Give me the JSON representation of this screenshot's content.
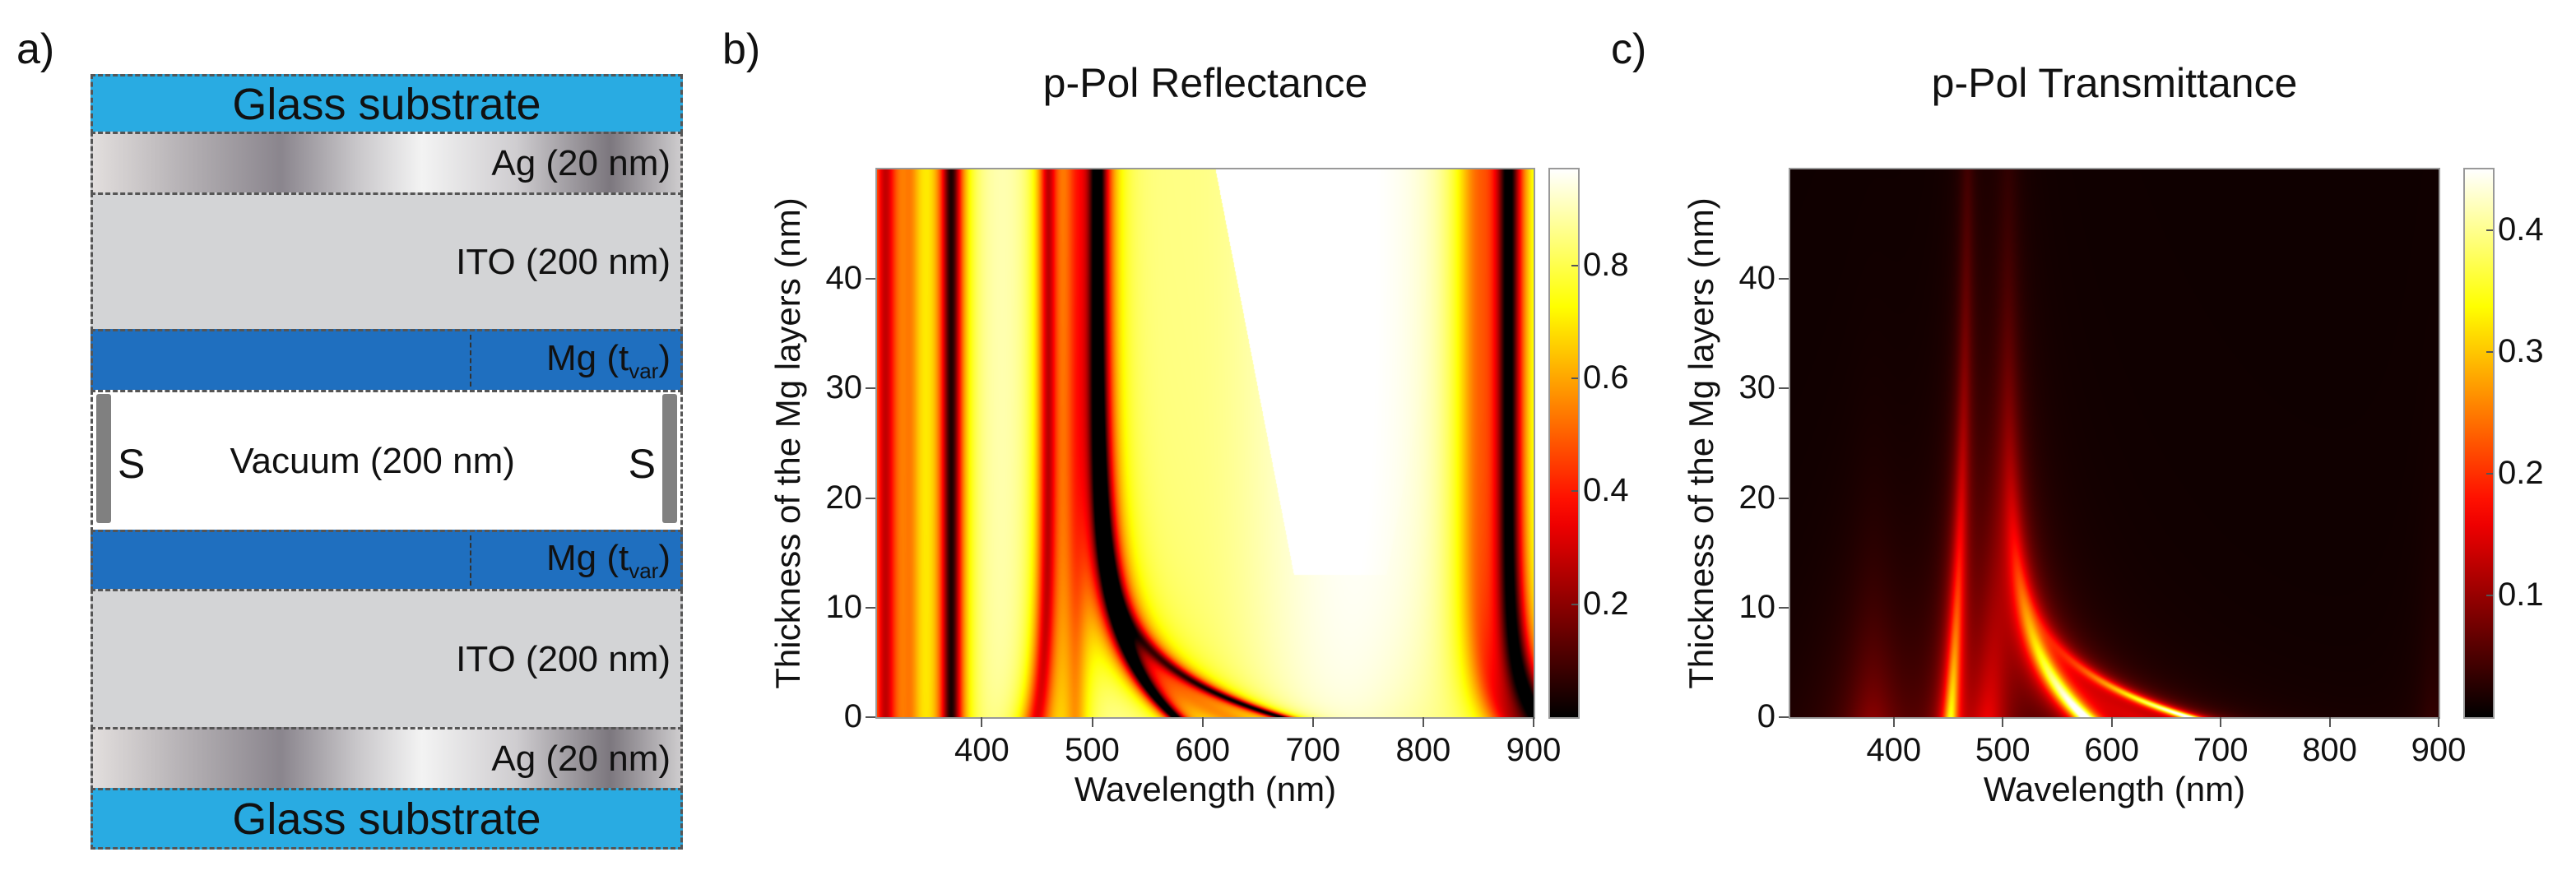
{
  "panels": {
    "a": {
      "letter": "a)",
      "layers": [
        {
          "type": "glass",
          "label": "Glass substrate"
        },
        {
          "type": "ag",
          "label": "Ag (20 nm)"
        },
        {
          "type": "ito",
          "label": "ITO (200 nm)"
        },
        {
          "type": "mg",
          "label_main": "Mg (t",
          "label_sub": "var",
          "label_end": ")"
        },
        {
          "type": "vacuum",
          "label": "Vacuum (200 nm)",
          "spacer_label": "S"
        },
        {
          "type": "mg",
          "label_main": "Mg (t",
          "label_sub": "var",
          "label_end": ")"
        },
        {
          "type": "ito",
          "label": "ITO (200 nm)"
        },
        {
          "type": "ag",
          "label": "Ag (20 nm)"
        },
        {
          "type": "glass",
          "label": "Glass substrate"
        }
      ],
      "colors": {
        "glass": "#29abe2",
        "mg": "#1f6fbf",
        "ito": "#d3d4d6",
        "spacer": "#808080"
      }
    },
    "b": {
      "letter": "b)"
    },
    "c": {
      "letter": "c)"
    }
  },
  "chart_data": [
    {
      "type": "heatmap",
      "title": "p-Pol Reflectance",
      "xlabel": "Wavelength (nm)",
      "ylabel": "Thickness of the Mg layers (nm)",
      "xlim": [
        305,
        900
      ],
      "ylim": [
        0,
        50
      ],
      "xticks": [
        400,
        500,
        600,
        700,
        800,
        900
      ],
      "yticks": [
        0,
        10,
        20,
        30,
        40
      ],
      "colormap": "hot",
      "clim": [
        0.0,
        0.97
      ],
      "cbar_ticks": [
        0.2,
        0.4,
        0.6,
        0.8
      ],
      "features": {
        "description_unit": "minima ridges, wavelength in nm vs Mg thickness in nm",
        "ridges": [
          {
            "pos_top": 312,
            "pos_bottom": 312,
            "depth": 0.65,
            "width": 12
          },
          {
            "pos_top": 372,
            "pos_bottom": 372,
            "depth": 0.9,
            "width": 10
          },
          {
            "pos_top": 460,
            "pos_bottom": 450,
            "depth": 0.6,
            "width": 9
          },
          {
            "pos_top": 505,
            "pos_bottom": 575,
            "depth": 0.95,
            "width": 10
          },
          {
            "pos_top": 505,
            "pos_bottom": 670,
            "depth": 0.9,
            "width": 9
          },
          {
            "pos_top": 878,
            "pos_bottom": 905,
            "depth": 0.95,
            "width": 12
          }
        ]
      }
    },
    {
      "type": "heatmap",
      "title": "p-Pol Transmittance",
      "xlabel": "Wavelength (nm)",
      "ylabel": "Thickness of the Mg layers (nm)",
      "xlim": [
        305,
        900
      ],
      "ylim": [
        0,
        50
      ],
      "xticks": [
        400,
        500,
        600,
        700,
        800,
        900
      ],
      "yticks": [
        0,
        10,
        20,
        30,
        40
      ],
      "colormap": "hot",
      "clim": [
        0.0,
        0.45
      ],
      "cbar_ticks": [
        0.1,
        0.2,
        0.3,
        0.4
      ],
      "features": {
        "description_unit": "maxima ridges, wavelength in nm vs Mg thickness in nm",
        "ridges": [
          {
            "pos_top": 470,
            "pos_bottom": 452,
            "peak": 0.3,
            "decay": 22,
            "width": 7
          },
          {
            "pos_top": 505,
            "pos_bottom": 575,
            "peak": 0.45,
            "decay": 9,
            "width": 10
          },
          {
            "pos_top": 505,
            "pos_bottom": 670,
            "peak": 0.45,
            "decay": 4,
            "width": 9
          },
          {
            "pos_top": 380,
            "pos_bottom": 380,
            "peak": 0.07,
            "decay": 10,
            "width": 25
          }
        ]
      }
    }
  ]
}
